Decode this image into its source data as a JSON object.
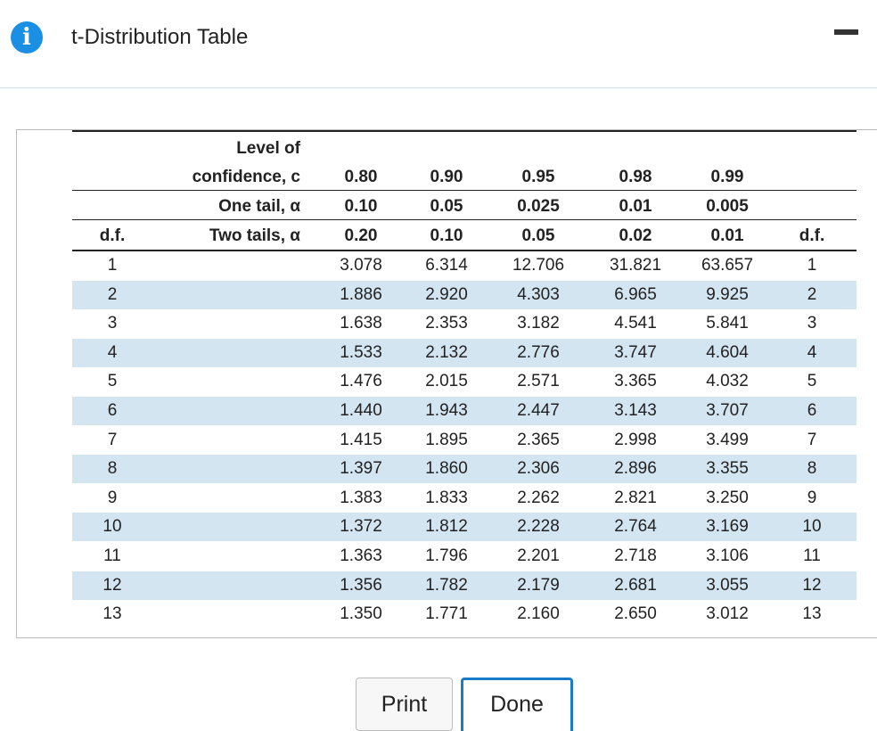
{
  "header": {
    "title": "t-Distribution Table"
  },
  "table": {
    "level_label": "Level of",
    "confidence_label": "confidence, c",
    "one_tail_label": "One tail, α",
    "two_tails_label": "Two tails, α",
    "df_label": "d.f.",
    "confidence": [
      "0.80",
      "0.90",
      "0.95",
      "0.98",
      "0.99"
    ],
    "one_tail": [
      "0.10",
      "0.05",
      "0.025",
      "0.01",
      "0.005"
    ],
    "two_tails": [
      "0.20",
      "0.10",
      "0.05",
      "0.02",
      "0.01"
    ],
    "rows": [
      [
        "1",
        "3.078",
        "6.314",
        "12.706",
        "31.821",
        "63.657"
      ],
      [
        "2",
        "1.886",
        "2.920",
        "4.303",
        "6.965",
        "9.925"
      ],
      [
        "3",
        "1.638",
        "2.353",
        "3.182",
        "4.541",
        "5.841"
      ],
      [
        "4",
        "1.533",
        "2.132",
        "2.776",
        "3.747",
        "4.604"
      ],
      [
        "5",
        "1.476",
        "2.015",
        "2.571",
        "3.365",
        "4.032"
      ],
      [
        "6",
        "1.440",
        "1.943",
        "2.447",
        "3.143",
        "3.707"
      ],
      [
        "7",
        "1.415",
        "1.895",
        "2.365",
        "2.998",
        "3.499"
      ],
      [
        "8",
        "1.397",
        "1.860",
        "2.306",
        "2.896",
        "3.355"
      ],
      [
        "9",
        "1.383",
        "1.833",
        "2.262",
        "2.821",
        "3.250"
      ],
      [
        "10",
        "1.372",
        "1.812",
        "2.228",
        "2.764",
        "3.169"
      ],
      [
        "11",
        "1.363",
        "1.796",
        "2.201",
        "2.718",
        "3.106"
      ],
      [
        "12",
        "1.356",
        "1.782",
        "2.179",
        "2.681",
        "3.055"
      ],
      [
        "13",
        "1.350",
        "1.771",
        "2.160",
        "2.650",
        "3.012"
      ]
    ]
  },
  "buttons": {
    "print": "Print",
    "done": "Done"
  }
}
